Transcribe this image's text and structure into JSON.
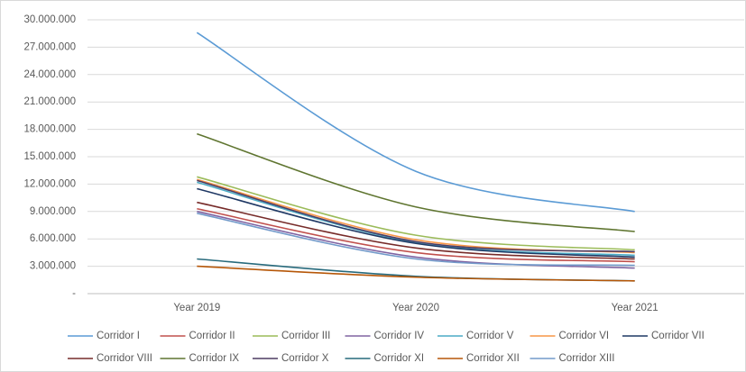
{
  "chart_data": {
    "type": "line",
    "categories": [
      "Year 2019",
      "Year 2020",
      "Year 2021"
    ],
    "ylim": [
      0,
      30000000
    ],
    "yticks": [
      {
        "value": 0,
        "label": "-"
      },
      {
        "value": 3000000,
        "label": "3.000.000"
      },
      {
        "value": 6000000,
        "label": "6.000.000"
      },
      {
        "value": 9000000,
        "label": "9.000.000"
      },
      {
        "value": 12000000,
        "label": "12.000.000"
      },
      {
        "value": 15000000,
        "label": "15.000.000"
      },
      {
        "value": 18000000,
        "label": "18.000.000"
      },
      {
        "value": 21000000,
        "label": "21.000.000"
      },
      {
        "value": 24000000,
        "label": "24.000.000"
      },
      {
        "value": 27000000,
        "label": "27.000.000"
      },
      {
        "value": 30000000,
        "label": "30.000.000"
      }
    ],
    "grid": true,
    "legend": "bottom",
    "series": [
      {
        "name": "Corridor I",
        "color": "#5b9bd5",
        "values": [
          28600000,
          13400000,
          9000000
        ]
      },
      {
        "name": "Corridor II",
        "color": "#c0504d",
        "values": [
          9300000,
          4500000,
          3500000
        ]
      },
      {
        "name": "Corridor III",
        "color": "#9bbb59",
        "values": [
          12800000,
          6400000,
          4800000
        ]
      },
      {
        "name": "Corridor IV",
        "color": "#8064a2",
        "values": [
          9000000,
          4000000,
          2800000
        ]
      },
      {
        "name": "Corridor V",
        "color": "#4bacc6",
        "values": [
          12200000,
          5600000,
          4200000
        ]
      },
      {
        "name": "Corridor VI",
        "color": "#f79646",
        "values": [
          12500000,
          5900000,
          4500000
        ]
      },
      {
        "name": "Corridor VII",
        "color": "#1f3864",
        "values": [
          11500000,
          5500000,
          4000000
        ]
      },
      {
        "name": "Corridor VIII",
        "color": "#772c2a",
        "values": [
          10000000,
          5000000,
          3800000
        ]
      },
      {
        "name": "Corridor IX",
        "color": "#5f7530",
        "values": [
          17500000,
          9500000,
          6800000
        ]
      },
      {
        "name": "Corridor X",
        "color": "#4d3b62",
        "values": [
          12400000,
          5700000,
          4600000
        ]
      },
      {
        "name": "Corridor XI",
        "color": "#276a7c",
        "values": [
          3800000,
          1900000,
          1400000
        ]
      },
      {
        "name": "Corridor XII",
        "color": "#b65708",
        "values": [
          3000000,
          1800000,
          1400000
        ]
      },
      {
        "name": "Corridor XIII",
        "color": "#729aca",
        "values": [
          8800000,
          3800000,
          3100000
        ]
      }
    ]
  }
}
